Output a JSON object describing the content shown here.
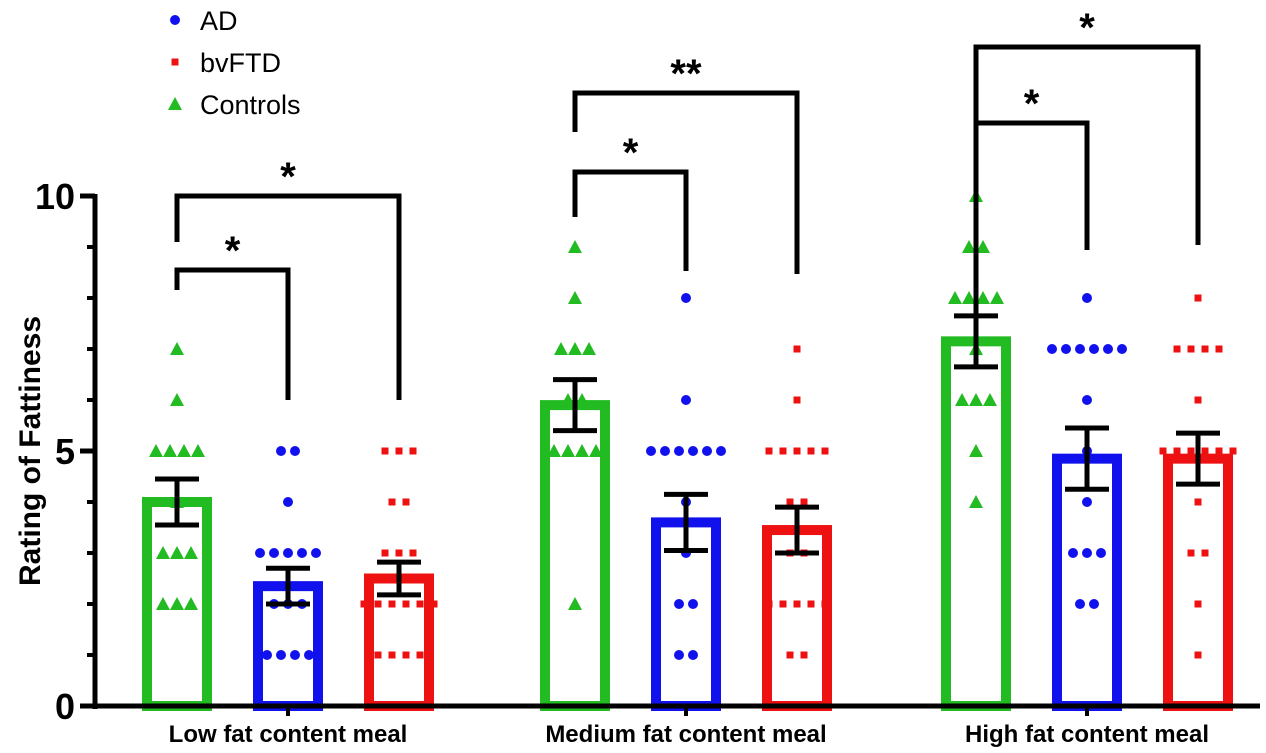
{
  "chart_data": {
    "type": "bar",
    "ylabel": "Rating of Fattiness",
    "xlabel": "",
    "ylim": [
      0,
      10
    ],
    "yticks": [
      "0",
      "5",
      "10"
    ],
    "categories": [
      "Low fat content meal",
      "Medium fat content meal",
      "High fat content meal"
    ],
    "legend": {
      "placement": "top-left"
    },
    "series": [
      {
        "name": "Controls",
        "color": "#22bb22",
        "marker": "triangle",
        "means": [
          4.0,
          5.9,
          7.15
        ],
        "sem": [
          0.45,
          0.5,
          0.5
        ],
        "points": [
          [
            7,
            6,
            5,
            5,
            5,
            5,
            4,
            3,
            3,
            3,
            2,
            2,
            2
          ],
          [
            9,
            8,
            7,
            7,
            7,
            6,
            6,
            5,
            5,
            5,
            5,
            2
          ],
          [
            10,
            9,
            9,
            8,
            8,
            8,
            8,
            7,
            6,
            6,
            6,
            5,
            4
          ]
        ]
      },
      {
        "name": "AD",
        "color": "#1111ee",
        "marker": "circle",
        "means": [
          2.35,
          3.6,
          4.85
        ],
        "sem": [
          0.35,
          0.55,
          0.6
        ],
        "points": [
          [
            5,
            5,
            4,
            3,
            3,
            3,
            3,
            3,
            2,
            2,
            2,
            1,
            1,
            1,
            1,
            0
          ],
          [
            8,
            6,
            5,
            5,
            5,
            5,
            5,
            5,
            4,
            3,
            2,
            2,
            1,
            1,
            0
          ],
          [
            8,
            7,
            7,
            7,
            7,
            7,
            7,
            6,
            5,
            4,
            3,
            3,
            3,
            2,
            2,
            0
          ]
        ]
      },
      {
        "name": "bvFTD",
        "color": "#ee1111",
        "marker": "square",
        "means": [
          2.5,
          3.45,
          4.85
        ],
        "sem": [
          0.32,
          0.45,
          0.5
        ],
        "points": [
          [
            5,
            5,
            5,
            4,
            4,
            3,
            3,
            3,
            2,
            2,
            2,
            2,
            2,
            2,
            1,
            1,
            1,
            1,
            0
          ],
          [
            7,
            6,
            5,
            5,
            5,
            5,
            5,
            4,
            4,
            3,
            3,
            2,
            2,
            2,
            2,
            2,
            1,
            1,
            0
          ],
          [
            8,
            7,
            7,
            7,
            7,
            6,
            5,
            5,
            5,
            5,
            5,
            5,
            4,
            3,
            3,
            2,
            1,
            0
          ]
        ]
      }
    ],
    "legend_order": [
      "AD",
      "bvFTD",
      "Controls"
    ],
    "significance": [
      {
        "category": 0,
        "from": "Controls",
        "to": "AD",
        "label": "*"
      },
      {
        "category": 0,
        "from": "Controls",
        "to": "bvFTD",
        "label": "*"
      },
      {
        "category": 1,
        "from": "Controls",
        "to": "AD",
        "label": "*"
      },
      {
        "category": 1,
        "from": "Controls",
        "to": "bvFTD",
        "label": "**"
      },
      {
        "category": 2,
        "from": "Controls",
        "to": "AD",
        "label": "*"
      },
      {
        "category": 2,
        "from": "Controls",
        "to": "bvFTD",
        "label": "*"
      }
    ]
  }
}
